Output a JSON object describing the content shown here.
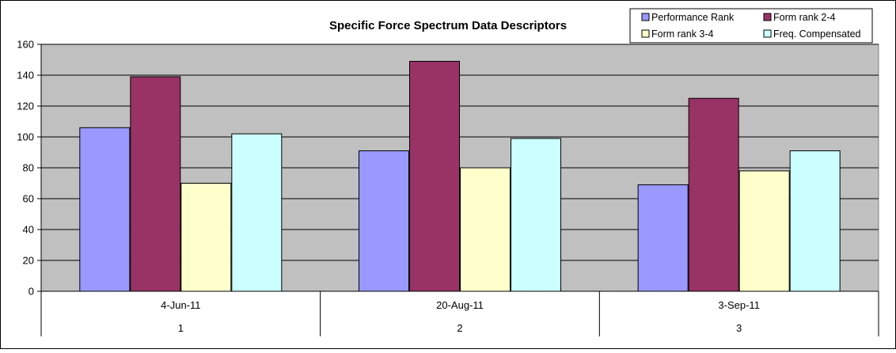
{
  "chart_data": {
    "type": "bar",
    "title": "Specific Force Spectrum Data Descriptors",
    "xlabel": "",
    "ylabel": "",
    "ylim": [
      0,
      160
    ],
    "yticks": [
      0,
      20,
      40,
      60,
      80,
      100,
      120,
      140,
      160
    ],
    "grid": true,
    "legend_position": "top-right",
    "categories": [
      {
        "date": "4-Jun-11",
        "index": "1"
      },
      {
        "date": "20-Aug-11",
        "index": "2"
      },
      {
        "date": "3-Sep-11",
        "index": "3"
      }
    ],
    "series": [
      {
        "name": "Performance Rank",
        "color": "#9999ff",
        "values": [
          106,
          91,
          69
        ]
      },
      {
        "name": "Form rank 2-4",
        "color": "#993366",
        "values": [
          139,
          149,
          125
        ]
      },
      {
        "name": "Form rank 3-4",
        "color": "#ffffcc",
        "values": [
          70,
          80,
          78
        ]
      },
      {
        "name": "Freq. Compensated",
        "color": "#ccffff",
        "values": [
          102,
          99,
          91
        ]
      }
    ],
    "colors": {
      "plot_background": "#c0c0c0",
      "gridline": "#000000"
    }
  }
}
